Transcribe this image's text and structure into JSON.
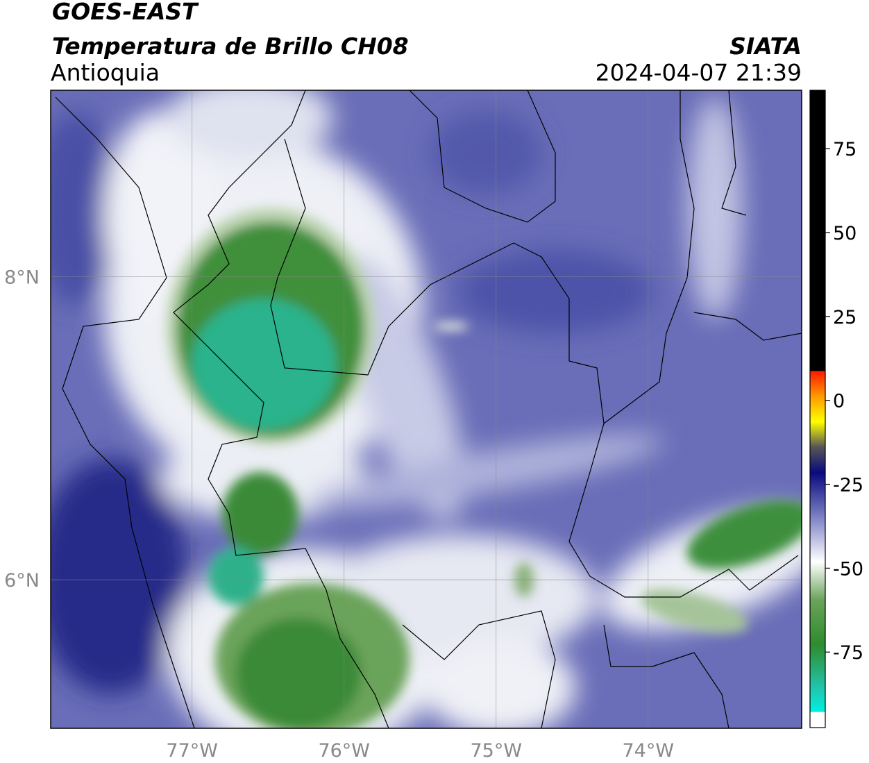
{
  "header": {
    "title": "GOES-EAST",
    "subtitle": "Temperatura de Brillo CH08",
    "region": "Antioquia",
    "source": "SIATA",
    "timestamp": "2024-04-07 21:39"
  },
  "map": {
    "xlim": [
      -77.93,
      -72.99
    ],
    "ylim": [
      5.02,
      9.23
    ],
    "xticks": [
      {
        "value": -77,
        "label": "77°W"
      },
      {
        "value": -76,
        "label": "76°W"
      },
      {
        "value": -75,
        "label": "75°W"
      },
      {
        "value": -74,
        "label": "74°W"
      }
    ],
    "yticks": [
      {
        "value": 8,
        "label": "8°N"
      },
      {
        "value": 6,
        "label": "6°N"
      }
    ]
  },
  "colorbar": {
    "lim": [
      -97.5,
      92.4
    ],
    "ticks": [
      75,
      50,
      25,
      0,
      -25,
      -50,
      -75
    ]
  }
}
